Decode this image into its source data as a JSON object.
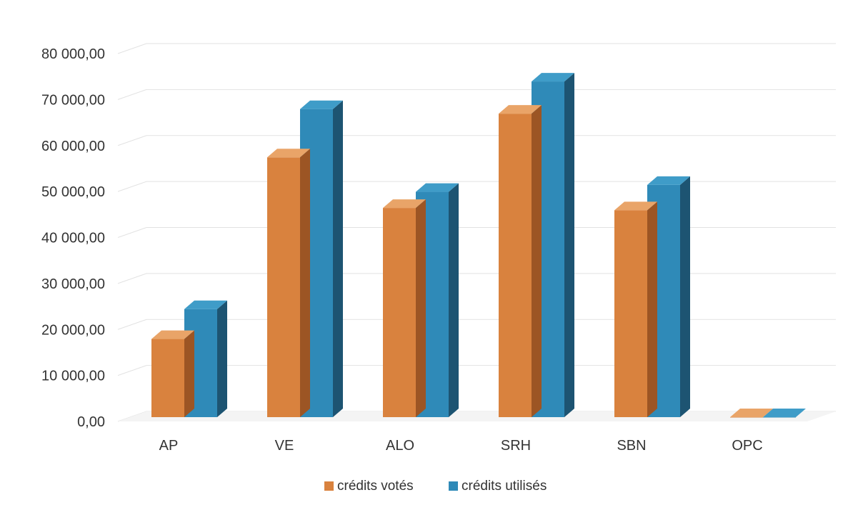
{
  "chart_data": {
    "type": "bar",
    "categories": [
      "AP",
      "VE",
      "ALO",
      "SRH",
      "SBN",
      "OPC"
    ],
    "series": [
      {
        "name": "crédits votés",
        "values": [
          17000,
          56500,
          45500,
          66000,
          45000,
          0
        ]
      },
      {
        "name": "crédits utilisés",
        "values": [
          23500,
          67000,
          49000,
          73000,
          50500,
          0
        ]
      }
    ],
    "y_ticks": [
      "0,00",
      "10 000,00",
      "20 000,00",
      "30 000,00",
      "40 000,00",
      "50 000,00",
      "60 000,00",
      "70 000,00",
      "80 000,00"
    ],
    "ylim": [
      0,
      80000
    ],
    "grid": true,
    "legend_position": "bottom",
    "colors": {
      "votes": "#d9823e",
      "votes_side": "#9c5524",
      "votes_top": "#e9a468",
      "utilises": "#2f8ab8",
      "utilises_side": "#1d5472",
      "utilises_top": "#3f9cc8",
      "grid": "#e2e2e2",
      "text": "#333333"
    }
  }
}
